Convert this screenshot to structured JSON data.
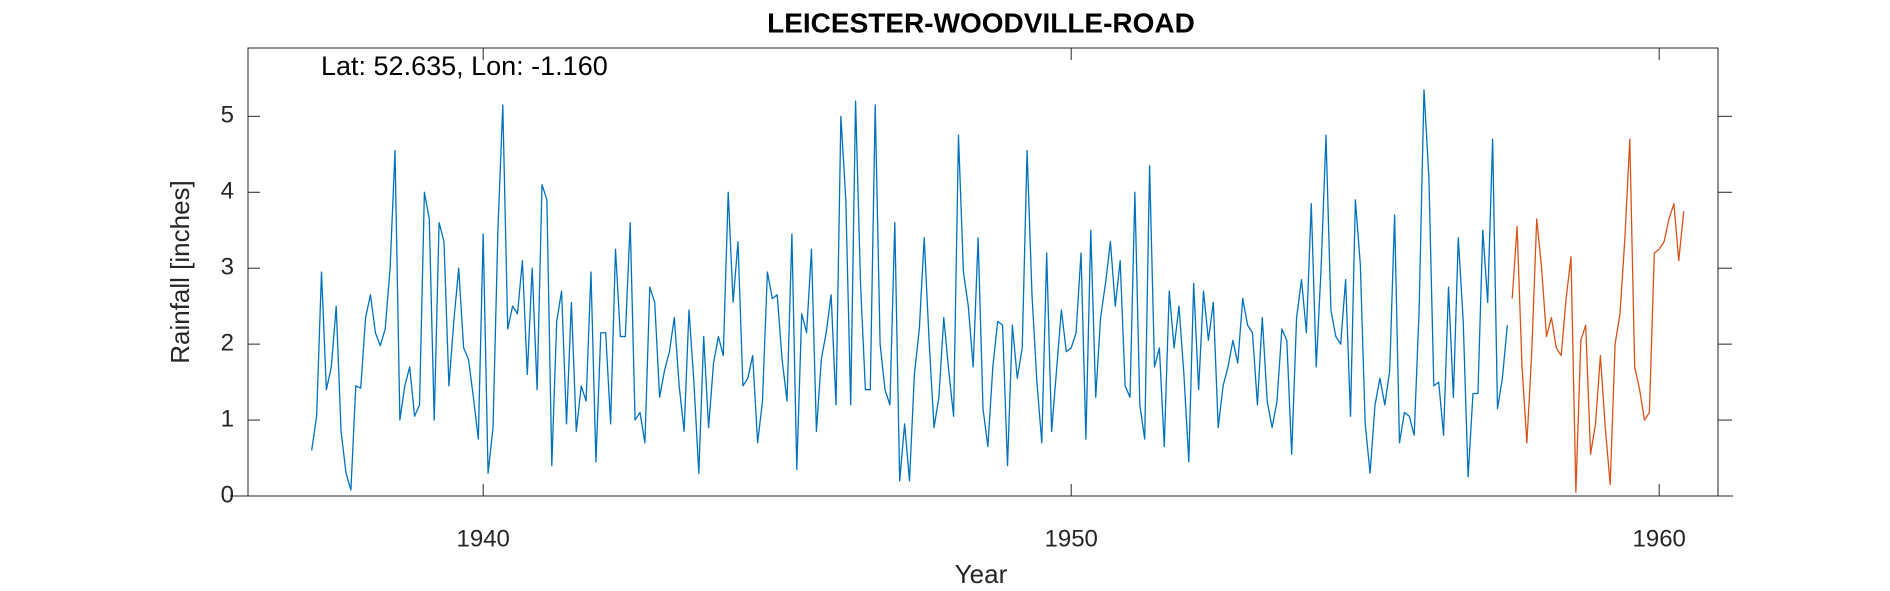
{
  "chart_data": {
    "type": "line",
    "title": "LEICESTER-WOODVILLE-ROAD",
    "annotation": "Lat: 52.635, Lon: -1.160",
    "xlabel": "Year",
    "ylabel": "Rainfall [inches]",
    "xlim": [
      1936,
      1961
    ],
    "ylim": [
      0,
      5.9
    ],
    "xticks": [
      1940,
      1950,
      1960
    ],
    "yticks": [
      0,
      1,
      2,
      3,
      4,
      5
    ],
    "series": [
      {
        "color": "#0072bd",
        "x": [
          1937.083,
          1937.167,
          1937.25,
          1937.333,
          1937.417,
          1937.5,
          1937.583,
          1937.667,
          1937.75,
          1937.833,
          1937.917,
          1938,
          1938.083,
          1938.167,
          1938.25,
          1938.333,
          1938.417,
          1938.5,
          1938.583,
          1938.667,
          1938.75,
          1938.833,
          1938.917,
          1939,
          1939.083,
          1939.167,
          1939.25,
          1939.333,
          1939.417,
          1939.5,
          1939.583,
          1939.667,
          1939.75,
          1939.833,
          1939.917,
          1940,
          1940.083,
          1940.167,
          1940.25,
          1940.333,
          1940.417,
          1940.5,
          1940.583,
          1940.667,
          1940.75,
          1940.833,
          1940.917,
          1941,
          1941.083,
          1941.167,
          1941.25,
          1941.333,
          1941.417,
          1941.5,
          1941.583,
          1941.667,
          1941.75,
          1941.833,
          1941.917,
          1942,
          1942.083,
          1942.167,
          1942.25,
          1942.333,
          1942.417,
          1942.5,
          1942.583,
          1942.667,
          1942.75,
          1942.833,
          1942.917,
          1943,
          1943.083,
          1943.167,
          1943.25,
          1943.333,
          1943.417,
          1943.5,
          1943.583,
          1943.667,
          1943.75,
          1943.833,
          1943.917,
          1944,
          1944.083,
          1944.167,
          1944.25,
          1944.333,
          1944.417,
          1944.5,
          1944.583,
          1944.667,
          1944.75,
          1944.833,
          1944.917,
          1945,
          1945.083,
          1945.167,
          1945.25,
          1945.333,
          1945.417,
          1945.5,
          1945.583,
          1945.667,
          1945.75,
          1945.833,
          1945.917,
          1946,
          1946.083,
          1946.167,
          1946.25,
          1946.333,
          1946.417,
          1946.5,
          1946.583,
          1946.667,
          1946.75,
          1946.833,
          1946.917,
          1947,
          1947.083,
          1947.167,
          1947.25,
          1947.333,
          1947.417,
          1947.5,
          1947.583,
          1947.667,
          1947.75,
          1947.833,
          1947.917,
          1948,
          1948.083,
          1948.167,
          1948.25,
          1948.333,
          1948.417,
          1948.5,
          1948.583,
          1948.667,
          1948.75,
          1948.833,
          1948.917,
          1949,
          1949.083,
          1949.167,
          1949.25,
          1949.333,
          1949.417,
          1949.5,
          1949.583,
          1949.667,
          1949.75,
          1949.833,
          1949.917,
          1950,
          1950.083,
          1950.167,
          1950.25,
          1950.333,
          1950.417,
          1950.5,
          1950.583,
          1950.667,
          1950.75,
          1950.833,
          1950.917,
          1951,
          1951.083,
          1951.167,
          1951.25,
          1951.333,
          1951.417,
          1951.5,
          1951.583,
          1951.667,
          1951.75,
          1951.833,
          1951.917,
          1952,
          1952.083,
          1952.167,
          1952.25,
          1952.333,
          1952.417,
          1952.5,
          1952.583,
          1952.667,
          1952.75,
          1952.833,
          1952.917,
          1953,
          1953.083,
          1953.167,
          1953.25,
          1953.333,
          1953.417,
          1953.5,
          1953.583,
          1953.667,
          1953.75,
          1953.833,
          1953.917,
          1954,
          1954.083,
          1954.167,
          1954.25,
          1954.333,
          1954.417,
          1954.5,
          1954.583,
          1954.667,
          1954.75,
          1954.833,
          1954.917,
          1955,
          1955.083,
          1955.167,
          1955.25,
          1955.333,
          1955.417,
          1955.5,
          1955.583,
          1955.667,
          1955.75,
          1955.833,
          1955.917,
          1956,
          1956.083,
          1956.167,
          1956.25,
          1956.333,
          1956.417,
          1956.5,
          1956.583,
          1956.667,
          1956.75,
          1956.833,
          1956.917,
          1957,
          1957.083,
          1957.167,
          1957.25,
          1957.333,
          1957.417
        ],
        "values": [
          0.6,
          1.05,
          2.95,
          1.4,
          1.7,
          2.5,
          0.85,
          0.3,
          0.08,
          1.45,
          1.42,
          2.35,
          2.65,
          2.15,
          1.98,
          2.2,
          3.0,
          4.55,
          1.0,
          1.45,
          1.7,
          1.05,
          1.2,
          4.0,
          3.65,
          1.0,
          3.6,
          3.35,
          1.45,
          2.3,
          3.0,
          1.95,
          1.8,
          1.3,
          0.75,
          3.45,
          0.3,
          0.9,
          3.5,
          5.15,
          2.2,
          2.5,
          2.4,
          3.1,
          1.6,
          3.0,
          1.4,
          4.1,
          3.9,
          0.4,
          2.3,
          2.7,
          0.95,
          2.55,
          0.85,
          1.45,
          1.25,
          2.95,
          0.45,
          2.15,
          2.15,
          0.95,
          3.25,
          2.1,
          2.1,
          3.6,
          1.0,
          1.1,
          0.7,
          2.75,
          2.55,
          1.3,
          1.65,
          1.9,
          2.35,
          1.45,
          0.85,
          2.45,
          1.5,
          0.3,
          2.1,
          0.9,
          1.75,
          2.1,
          1.85,
          4.0,
          2.55,
          3.35,
          1.45,
          1.55,
          1.85,
          0.7,
          1.25,
          2.95,
          2.6,
          2.65,
          1.8,
          1.25,
          3.45,
          0.35,
          2.4,
          2.15,
          3.25,
          0.85,
          1.8,
          2.15,
          2.65,
          1.2,
          5.0,
          3.9,
          1.2,
          5.2,
          2.8,
          1.4,
          1.4,
          5.15,
          2.0,
          1.4,
          1.2,
          3.6,
          0.2,
          0.95,
          0.2,
          1.6,
          2.2,
          3.4,
          2.05,
          0.9,
          1.3,
          2.35,
          1.65,
          1.05,
          4.75,
          2.95,
          2.5,
          1.7,
          3.4,
          1.15,
          0.65,
          1.7,
          2.3,
          2.25,
          0.4,
          2.25,
          1.55,
          1.95,
          4.55,
          2.65,
          1.5,
          0.7,
          3.2,
          0.85,
          1.65,
          2.45,
          1.9,
          1.95,
          2.15,
          3.2,
          0.75,
          3.5,
          1.3,
          2.35,
          2.8,
          3.35,
          2.5,
          3.1,
          1.45,
          1.3,
          4.0,
          1.2,
          0.75,
          4.35,
          1.7,
          1.95,
          0.65,
          2.7,
          1.95,
          2.5,
          1.6,
          0.45,
          2.8,
          1.4,
          2.7,
          2.05,
          2.55,
          0.9,
          1.45,
          1.7,
          2.05,
          1.75,
          2.6,
          2.25,
          2.15,
          1.2,
          2.35,
          1.25,
          0.9,
          1.25,
          2.2,
          2.05,
          0.55,
          2.35,
          2.85,
          2.15,
          3.85,
          1.7,
          3.0,
          4.75,
          2.45,
          2.1,
          2.0,
          2.85,
          1.05,
          3.9,
          3.05,
          0.95,
          0.3,
          1.2,
          1.55,
          1.2,
          1.65,
          3.7,
          0.7,
          1.1,
          1.05,
          0.8,
          2.45,
          5.35,
          4.2,
          1.45,
          1.5,
          0.8,
          2.75,
          1.3,
          3.4,
          2.3,
          0.25,
          1.35,
          1.35,
          3.5,
          2.55,
          4.7,
          1.15,
          1.55,
          2.25
        ]
      },
      {
        "color": "#d95319",
        "x": [
          1957.5,
          1957.583,
          1957.667,
          1957.75,
          1957.833,
          1957.917,
          1958,
          1958.083,
          1958.167,
          1958.25,
          1958.333,
          1958.417,
          1958.5,
          1958.583,
          1958.667,
          1958.75,
          1958.833,
          1958.917,
          1959,
          1959.083,
          1959.167,
          1959.25,
          1959.333,
          1959.417,
          1959.5,
          1959.583,
          1959.667,
          1959.75,
          1959.833,
          1959.917,
          1960,
          1960.083,
          1960.167,
          1960.25,
          1960.333,
          1960.417
        ],
        "values": [
          2.6,
          3.55,
          1.7,
          0.7,
          1.9,
          3.65,
          3.0,
          2.1,
          2.35,
          1.95,
          1.85,
          2.6,
          3.15,
          0.05,
          2.05,
          2.25,
          0.55,
          0.95,
          1.85,
          0.9,
          0.15,
          2.0,
          2.4,
          3.4,
          4.7,
          1.7,
          1.4,
          1.0,
          1.1,
          3.2,
          3.25,
          3.35,
          3.65,
          3.85,
          3.1,
          3.75
        ]
      }
    ]
  }
}
